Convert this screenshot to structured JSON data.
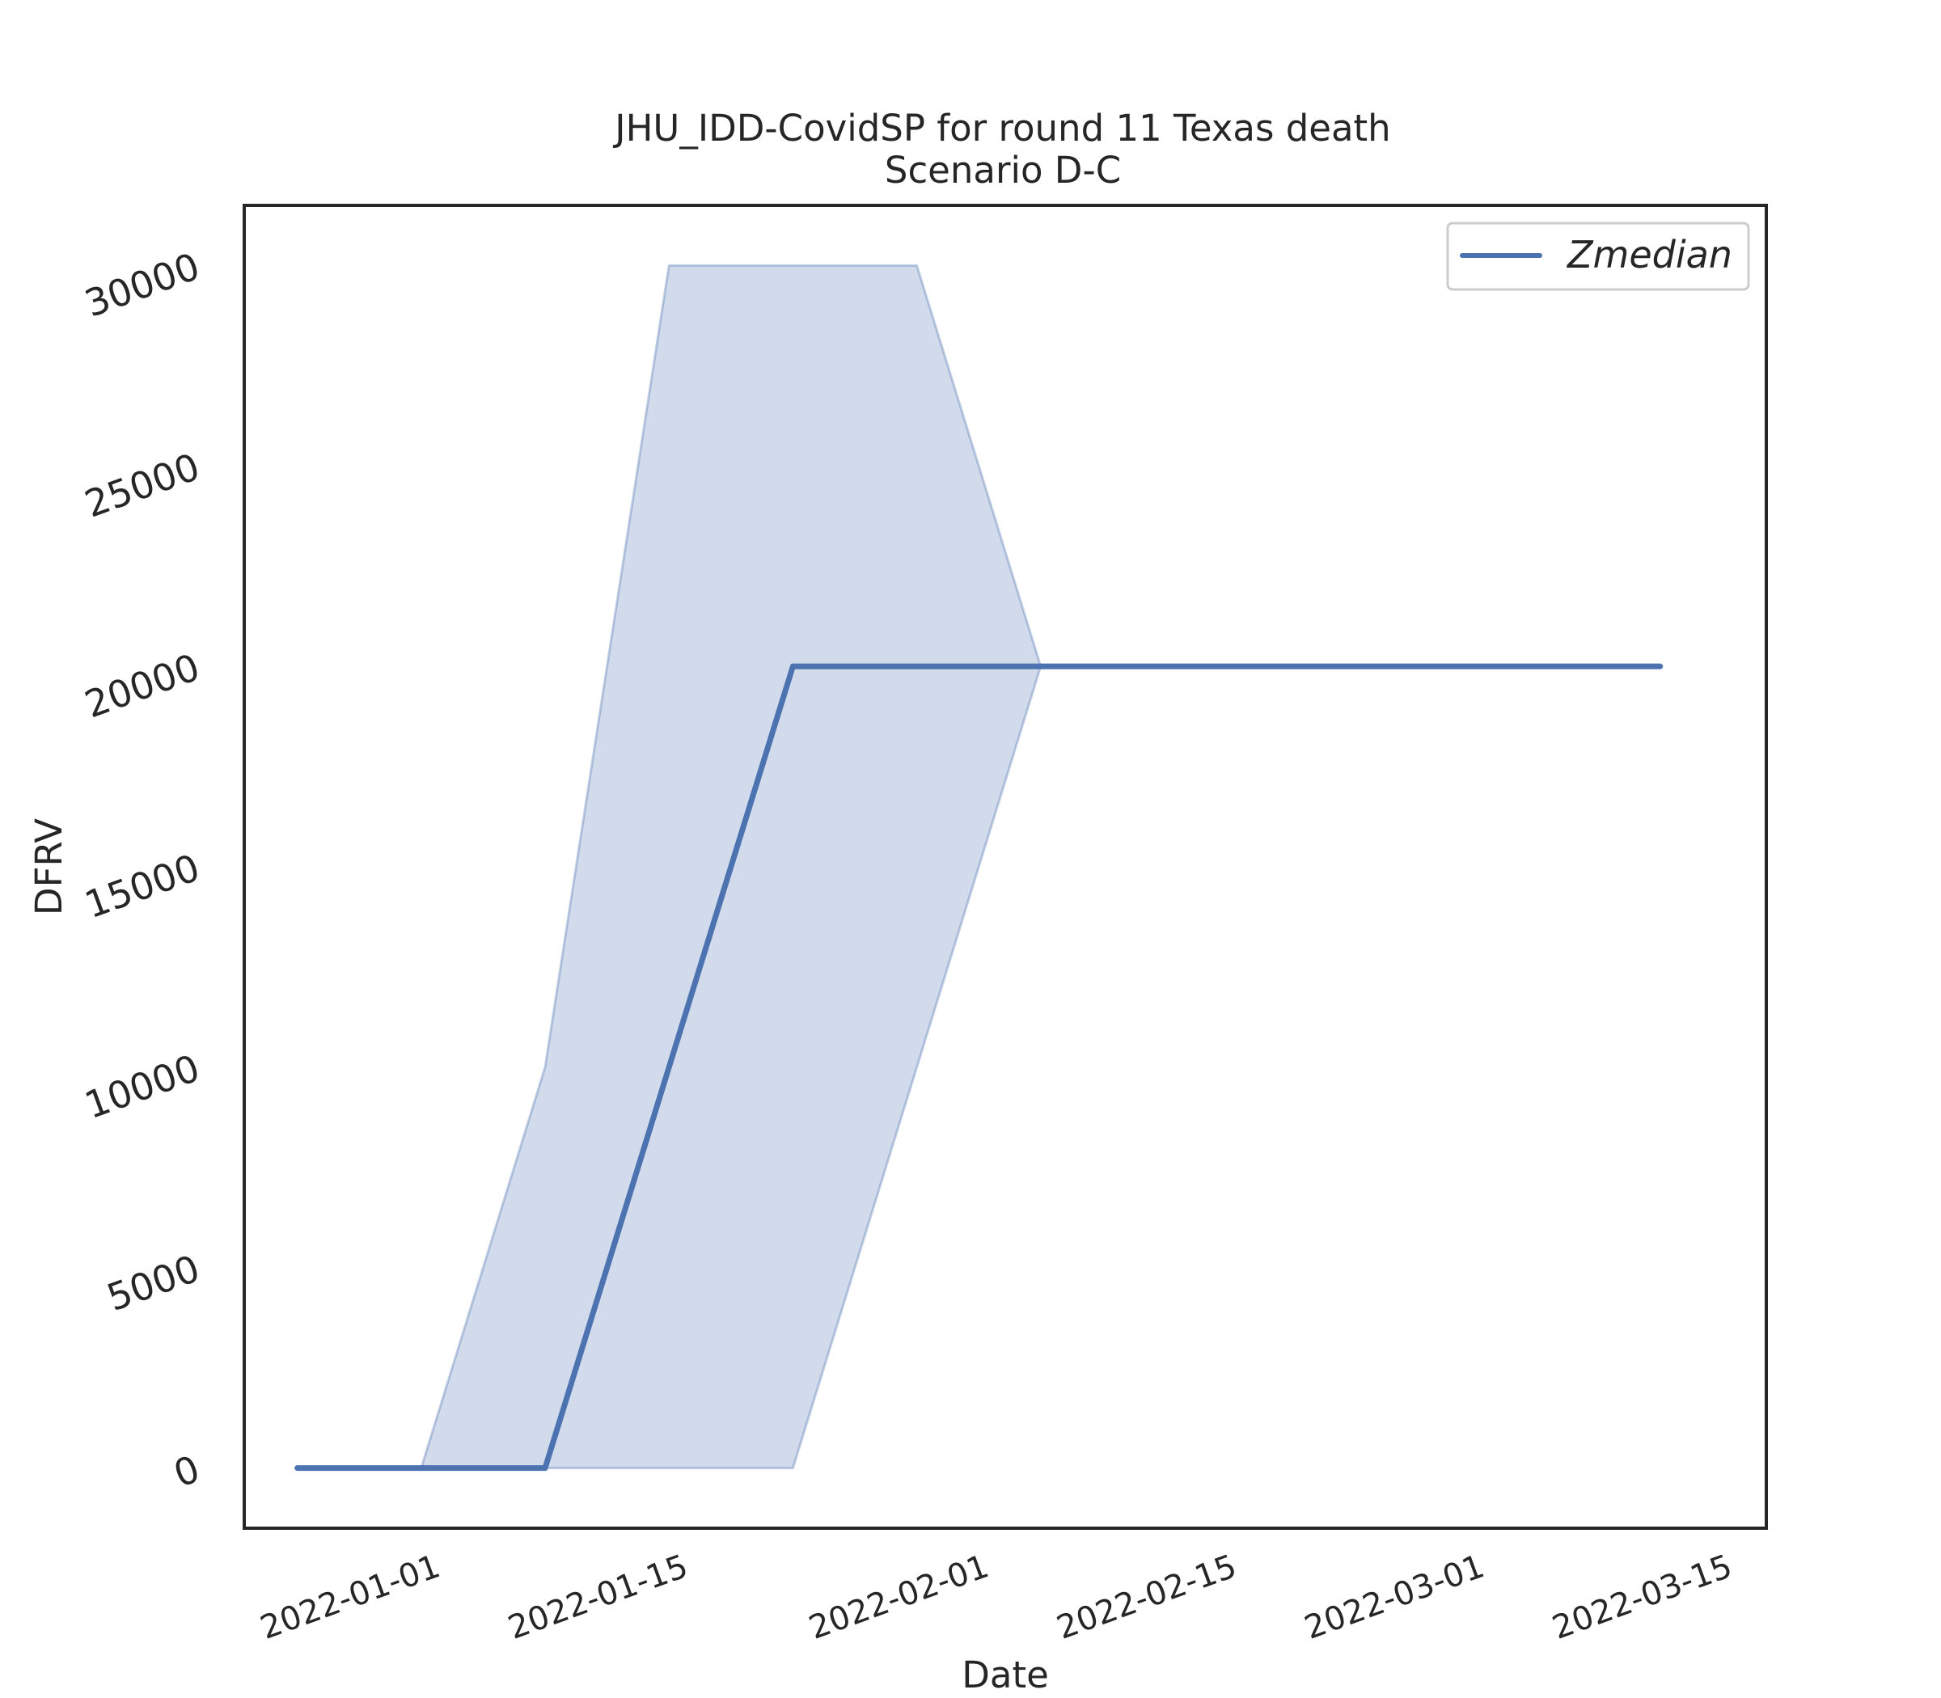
{
  "chart_data": {
    "type": "line",
    "title": "JHU_IDD-CovidSP for round 11 Texas death",
    "subtitle": "Scenario D-C",
    "xlabel": "Date",
    "ylabel": "DFRV",
    "x_axis_type": "date",
    "xlim": [
      "2021-12-22",
      "2022-03-18"
    ],
    "ylim": [
      -1500,
      31500
    ],
    "x_ticks": [
      "2022-01-01",
      "2022-01-15",
      "2022-02-01",
      "2022-02-15",
      "2022-03-01",
      "2022-03-15"
    ],
    "y_ticks": [
      0,
      5000,
      10000,
      15000,
      20000,
      25000,
      30000
    ],
    "grid": false,
    "legend": {
      "position": "top-right",
      "entries": [
        "Zmedian"
      ]
    },
    "series": [
      {
        "name": "Zmedian",
        "color": "#4c72b0",
        "x": [
          "2021-12-25",
          "2022-01-01",
          "2022-01-08",
          "2022-01-15",
          "2022-01-22",
          "2022-01-29",
          "2022-02-05",
          "2022-02-12",
          "2022-02-19",
          "2022-02-26",
          "2022-03-05",
          "2022-03-12"
        ],
        "y": [
          0,
          0,
          0,
          10000,
          20000,
          20000,
          20000,
          20000,
          20000,
          20000,
          20000,
          20000
        ]
      }
    ],
    "band": {
      "color": "#4c72b0",
      "opacity": 0.26,
      "x": [
        "2022-01-01",
        "2022-01-08",
        "2022-01-15",
        "2022-01-22",
        "2022-01-29",
        "2022-02-05"
      ],
      "lower": [
        0,
        0,
        0,
        0,
        10000,
        20000
      ],
      "upper": [
        0,
        10000,
        30000,
        30000,
        30000,
        20000
      ]
    }
  }
}
